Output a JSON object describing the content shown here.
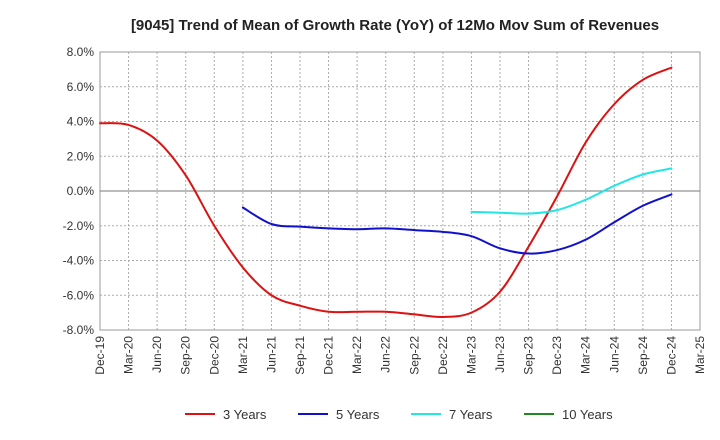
{
  "chart_data": {
    "type": "line",
    "title": "[9045]  Trend of Mean of Growth Rate (YoY) of 12Mo Mov Sum of Revenues",
    "xlabel": "",
    "ylabel": "",
    "ylim": [
      -8.0,
      8.0
    ],
    "y_ticks": [
      -8.0,
      -6.0,
      -4.0,
      -2.0,
      0.0,
      2.0,
      4.0,
      6.0,
      8.0
    ],
    "y_tick_labels": [
      "-8.0%",
      "-6.0%",
      "-4.0%",
      "-2.0%",
      "0.0%",
      "2.0%",
      "4.0%",
      "6.0%",
      "8.0%"
    ],
    "categories": [
      "Dec-19",
      "Mar-20",
      "Jun-20",
      "Sep-20",
      "Dec-20",
      "Mar-21",
      "Jun-21",
      "Sep-21",
      "Dec-21",
      "Mar-22",
      "Jun-22",
      "Sep-22",
      "Dec-22",
      "Mar-23",
      "Jun-23",
      "Sep-23",
      "Dec-23",
      "Mar-24",
      "Jun-24",
      "Sep-24",
      "Dec-24",
      "Mar-25"
    ],
    "grid": true,
    "legend_position": "bottom",
    "series": [
      {
        "name": "3 Years",
        "color": "#dd1111",
        "values": [
          3.9,
          3.8,
          2.9,
          0.9,
          -2.0,
          -4.4,
          -6.0,
          -6.6,
          -6.95,
          -6.95,
          -6.95,
          -7.1,
          -7.25,
          -7.0,
          -5.8,
          -3.2,
          -0.3,
          2.8,
          5.0,
          6.4,
          7.1,
          null
        ]
      },
      {
        "name": "5 Years",
        "color": "#1111cc",
        "values": [
          null,
          null,
          null,
          null,
          null,
          -0.95,
          -1.9,
          -2.05,
          -2.15,
          -2.2,
          -2.15,
          -2.25,
          -2.35,
          -2.6,
          -3.3,
          -3.6,
          -3.4,
          -2.8,
          -1.8,
          -0.85,
          -0.2,
          null
        ]
      },
      {
        "name": "7 Years",
        "color": "#22e5e5",
        "values": [
          null,
          null,
          null,
          null,
          null,
          null,
          null,
          null,
          null,
          null,
          null,
          null,
          null,
          -1.2,
          -1.25,
          -1.3,
          -1.1,
          -0.5,
          0.3,
          0.95,
          1.3,
          null
        ]
      },
      {
        "name": "10 Years",
        "color": "#228822",
        "values": [
          null,
          null,
          null,
          null,
          null,
          null,
          null,
          null,
          null,
          null,
          null,
          null,
          null,
          null,
          null,
          null,
          null,
          null,
          null,
          null,
          null,
          null
        ]
      }
    ]
  }
}
